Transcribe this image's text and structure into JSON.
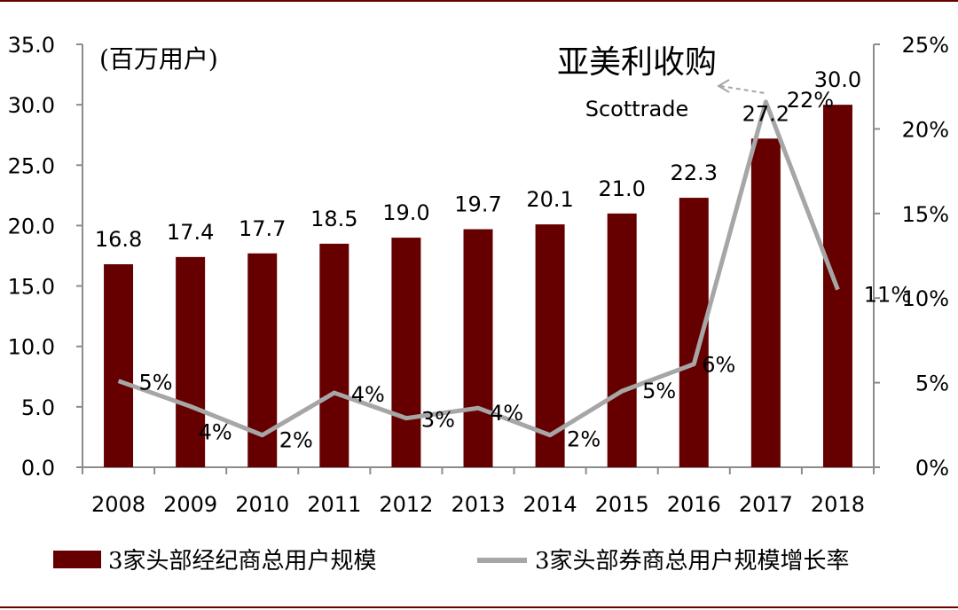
{
  "colors": {
    "bar": "#660000",
    "line": "#a6a6a6",
    "axis": "#8c8c8c",
    "frame": "#6b0000"
  },
  "chart_data": {
    "type": "bar+line",
    "unit_label": "(百万用户)",
    "categories": [
      "2008",
      "2009",
      "2010",
      "2011",
      "2012",
      "2013",
      "2014",
      "2015",
      "2016",
      "2017",
      "2018"
    ],
    "series": [
      {
        "name": "3家头部经纪商总用户规模",
        "type": "bar",
        "axis": "left",
        "values": [
          16.8,
          17.4,
          17.7,
          18.5,
          19.0,
          19.7,
          20.1,
          21.0,
          22.3,
          27.2,
          30.0
        ],
        "labels": [
          "16.8",
          "17.4",
          "17.7",
          "18.5",
          "19.0",
          "19.7",
          "20.1",
          "21.0",
          "22.3",
          "27.2",
          "30.0"
        ]
      },
      {
        "name": "3家头部券商总用户规模增长率",
        "type": "line",
        "axis": "right",
        "values": [
          5.1,
          3.6,
          1.9,
          4.4,
          2.9,
          3.5,
          1.9,
          4.5,
          6.1,
          21.6,
          10.5
        ],
        "labels": [
          "5%",
          "4%",
          "2%",
          "4%",
          "3%",
          "4%",
          "2%",
          "5%",
          "6%",
          "22%",
          "11%"
        ]
      }
    ],
    "y_left": {
      "min": 0,
      "max": 35,
      "ticks": [
        "0.0",
        "5.0",
        "10.0",
        "15.0",
        "20.0",
        "25.0",
        "30.0",
        "35.0"
      ]
    },
    "y_right": {
      "min": 0,
      "max": 25,
      "ticks": [
        "0%",
        "5%",
        "10%",
        "15%",
        "20%",
        "25%"
      ]
    },
    "annotation": {
      "line1": "亚美利收购",
      "line2": "Scottrade"
    }
  }
}
